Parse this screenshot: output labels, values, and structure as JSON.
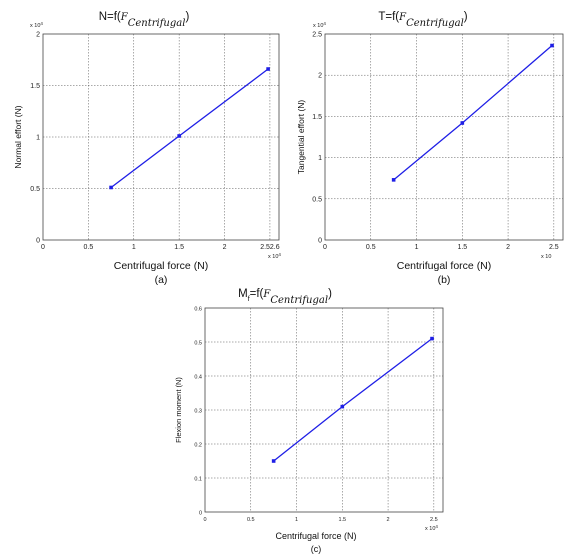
{
  "chart_data": [
    {
      "type": "line",
      "title_prefix": "N=f(",
      "title_var": "F",
      "title_sub": "Centrifugal",
      "title_suffix": ")",
      "xlabel": "Centrifugal force (N)",
      "ylabel": "Normal effort (N)",
      "caption": "(a)",
      "x_exponent": "x 10",
      "x_exponent_power": "4",
      "y_exponent": "x 10",
      "y_exponent_power": "4",
      "xlim": [
        0,
        2.6
      ],
      "ylim": [
        0,
        2
      ],
      "xticks": [
        0,
        0.5,
        1,
        1.5,
        2,
        2.5
      ],
      "yticks": [
        0,
        0.5,
        1,
        1.5,
        2
      ],
      "xtick_labels": [
        "0",
        "0.5",
        "1",
        "1.5",
        "2",
        "2.52.6"
      ],
      "ytick_labels": [
        "0",
        "0.5",
        "1",
        "1.5",
        "2"
      ],
      "grid": true,
      "color": "#1f1fe6",
      "x": [
        0.75,
        1.5,
        2.48
      ],
      "y": [
        0.51,
        1.01,
        1.66
      ]
    },
    {
      "type": "line",
      "title_prefix": "T=f(",
      "title_var": "F",
      "title_sub": "Centrifugal",
      "title_suffix": ")",
      "xlabel": "Centrifugal force (N)",
      "ylabel": "Tangential effort (N)",
      "caption": "(b)",
      "x_exponent": "x 10",
      "x_exponent_power": "",
      "y_exponent": "x 10",
      "y_exponent_power": "4",
      "xlim": [
        0,
        2.6
      ],
      "ylim": [
        0,
        2.5
      ],
      "xticks": [
        0,
        0.5,
        1,
        1.5,
        2,
        2.5
      ],
      "yticks": [
        0,
        0.5,
        1,
        1.5,
        2,
        2.5
      ],
      "xtick_labels": [
        "0",
        "0.5",
        "1",
        "1.5",
        "2",
        "2.5"
      ],
      "ytick_labels": [
        "0",
        "0.5",
        "1",
        "1.5",
        "2",
        "2.5"
      ],
      "grid": true,
      "color": "#1f1fe6",
      "x": [
        0.75,
        1.5,
        2.48
      ],
      "y": [
        0.73,
        1.42,
        2.36
      ]
    },
    {
      "type": "line",
      "title_prefix": "M",
      "title_prefix_sub": "f",
      "title_prefix2": "=f(",
      "title_var": "F",
      "title_sub": "Centrifugal",
      "title_suffix": ")",
      "xlabel": "Centrifugal force (N)",
      "ylabel": "Flexion moment (N)",
      "caption": "(c)",
      "x_exponent": "x 10",
      "x_exponent_power": "4",
      "xlim": [
        0,
        2.6
      ],
      "ylim": [
        0,
        0.6
      ],
      "xticks": [
        0,
        0.5,
        1,
        1.5,
        2,
        2.5
      ],
      "yticks": [
        0,
        0.1,
        0.2,
        0.3,
        0.4,
        0.5,
        0.6
      ],
      "xtick_labels": [
        "0",
        "0.5",
        "1",
        "1.5",
        "2",
        "2.5"
      ],
      "ytick_labels": [
        "0",
        "0.1",
        "0.2",
        "0.3",
        "0.4",
        "0.5",
        "0.6"
      ],
      "grid": true,
      "color": "#1f1fe6",
      "x": [
        0.75,
        1.5,
        2.48
      ],
      "y": [
        0.15,
        0.31,
        0.51
      ]
    }
  ]
}
